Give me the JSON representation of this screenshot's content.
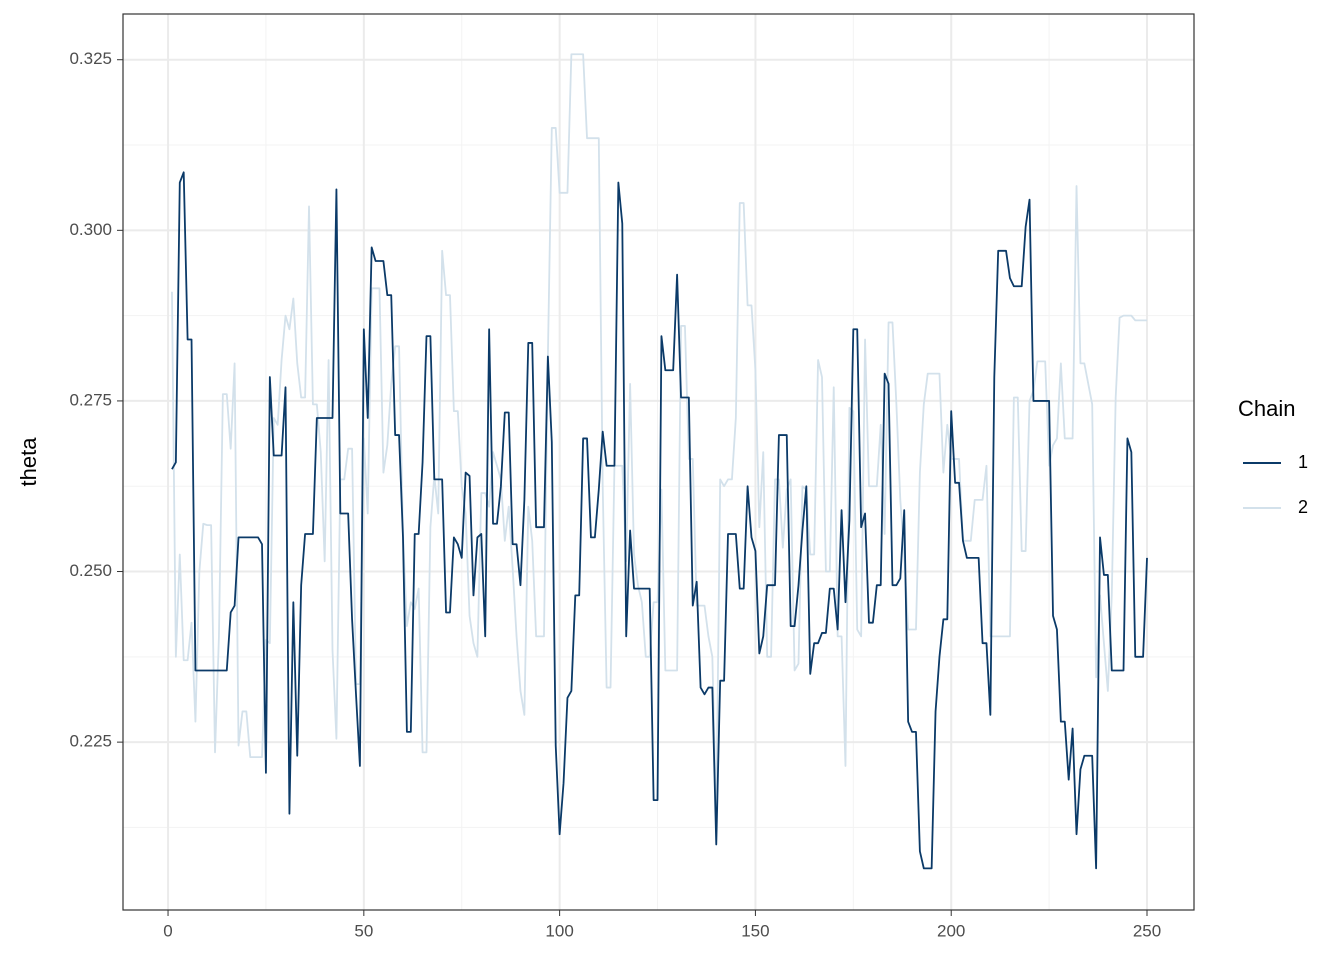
{
  "chart_data": {
    "type": "line",
    "y_label": "theta",
    "legend_title": "Chain",
    "legend": "right",
    "grid": true,
    "xlim": [
      -11.5,
      262
    ],
    "ylim": [
      0.2004,
      0.3317
    ],
    "xticks": [
      0,
      50,
      100,
      150,
      200,
      250
    ],
    "xticks_minor": [
      25,
      75,
      125,
      175,
      225
    ],
    "yticks": [
      0.225,
      {
        "value": 0.25,
        "label": "0.250"
      },
      0.275,
      {
        "value": 0.3,
        "label": "0.300"
      },
      0.325
    ],
    "yticks_minor": [
      0.2125,
      0.2375,
      0.2625,
      0.2875,
      0.3125
    ],
    "x": [
      1,
      2,
      3,
      4,
      5,
      6,
      7,
      8,
      9,
      10,
      11,
      12,
      13,
      14,
      15,
      16,
      17,
      18,
      19,
      20,
      21,
      22,
      23,
      24,
      25,
      26,
      27,
      28,
      29,
      30,
      31,
      32,
      33,
      34,
      35,
      36,
      37,
      38,
      39,
      40,
      41,
      42,
      43,
      44,
      45,
      46,
      47,
      48,
      49,
      50,
      51,
      52,
      53,
      54,
      55,
      56,
      57,
      58,
      59,
      60,
      61,
      62,
      63,
      64,
      65,
      66,
      67,
      68,
      69,
      70,
      71,
      72,
      73,
      74,
      75,
      76,
      77,
      78,
      79,
      80,
      81,
      82,
      83,
      84,
      85,
      86,
      87,
      88,
      89,
      90,
      91,
      92,
      93,
      94,
      95,
      96,
      97,
      98,
      99,
      100,
      101,
      102,
      103,
      104,
      105,
      106,
      107,
      108,
      109,
      110,
      111,
      112,
      113,
      114,
      115,
      116,
      117,
      118,
      119,
      120,
      121,
      122,
      123,
      124,
      125,
      126,
      127,
      128,
      129,
      130,
      131,
      132,
      133,
      134,
      135,
      136,
      137,
      138,
      139,
      140,
      141,
      142,
      143,
      144,
      145,
      146,
      147,
      148,
      149,
      150,
      151,
      152,
      153,
      154,
      155,
      156,
      157,
      158,
      159,
      160,
      161,
      162,
      163,
      164,
      165,
      166,
      167,
      168,
      169,
      170,
      171,
      172,
      173,
      174,
      175,
      176,
      177,
      178,
      179,
      180,
      181,
      182,
      183,
      184,
      185,
      186,
      187,
      188,
      189,
      190,
      191,
      192,
      193,
      194,
      195,
      196,
      197,
      198,
      199,
      200,
      201,
      202,
      203,
      204,
      205,
      206,
      207,
      208,
      209,
      210,
      211,
      212,
      213,
      214,
      215,
      216,
      217,
      218,
      219,
      220,
      221,
      222,
      223,
      224,
      225,
      226,
      227,
      228,
      229,
      230,
      231,
      232,
      233,
      234,
      235,
      236,
      237,
      238,
      239,
      240,
      241,
      242,
      243,
      244,
      245,
      246,
      247,
      248,
      249,
      250
    ],
    "series": [
      {
        "name": "2",
        "color": "#d3e1eb",
        "values": [
          0.291,
          0.2375,
          0.2525,
          0.237,
          0.237,
          0.2425,
          0.228,
          0.25,
          0.257,
          0.2568,
          0.2568,
          0.2235,
          0.2405,
          0.276,
          0.276,
          0.268,
          0.2805,
          0.2245,
          0.2295,
          0.2295,
          0.2228,
          0.2228,
          0.2228,
          0.2228,
          0.24,
          0.2395,
          0.2725,
          0.2715,
          0.281,
          0.2875,
          0.2855,
          0.29,
          0.2805,
          0.2755,
          0.2755,
          0.3035,
          0.2745,
          0.2745,
          0.2675,
          0.2515,
          0.281,
          0.2385,
          0.2255,
          0.2635,
          0.2635,
          0.268,
          0.268,
          0.2335,
          0.2335,
          0.2695,
          0.2585,
          0.2915,
          0.2915,
          0.2915,
          0.2645,
          0.2685,
          0.2775,
          0.283,
          0.283,
          0.2555,
          0.242,
          0.2455,
          0.2445,
          0.2475,
          0.2235,
          0.2235,
          0.2565,
          0.264,
          0.2585,
          0.297,
          0.2905,
          0.2905,
          0.2735,
          0.2735,
          0.2625,
          0.2585,
          0.2435,
          0.2395,
          0.2375,
          0.2615,
          0.2615,
          0.2595,
          0.2675,
          0.2655,
          0.2635,
          0.2545,
          0.2595,
          0.2505,
          0.2405,
          0.2325,
          0.229,
          0.2595,
          0.2545,
          0.2405,
          0.2405,
          0.2405,
          0.2815,
          0.315,
          0.315,
          0.3055,
          0.3055,
          0.3055,
          0.3258,
          0.3258,
          0.3258,
          0.3258,
          0.3135,
          0.3135,
          0.3135,
          0.3135,
          0.2625,
          0.233,
          0.233,
          0.2655,
          0.2655,
          0.2655,
          0.2515,
          0.2775,
          0.2525,
          0.248,
          0.2455,
          0.2375,
          0.2375,
          0.2455,
          0.2455,
          0.262,
          0.2355,
          0.2355,
          0.2355,
          0.2355,
          0.286,
          0.286,
          0.2665,
          0.2665,
          0.245,
          0.245,
          0.245,
          0.2405,
          0.2375,
          0.2135,
          0.2635,
          0.2625,
          0.2635,
          0.2635,
          0.2725,
          0.304,
          0.304,
          0.289,
          0.289,
          0.2795,
          0.2565,
          0.2675,
          0.2375,
          0.2375,
          0.2635,
          0.2635,
          0.2535,
          0.262,
          0.2635,
          0.2355,
          0.2365,
          0.2625,
          0.262,
          0.2525,
          0.2525,
          0.281,
          0.2785,
          0.25,
          0.25,
          0.277,
          0.2405,
          0.2405,
          0.2215,
          0.274,
          0.2735,
          0.2415,
          0.2405,
          0.284,
          0.2625,
          0.2625,
          0.2625,
          0.2715,
          0.2555,
          0.2865,
          0.2865,
          0.2745,
          0.2605,
          0.2525,
          0.2415,
          0.2415,
          0.2415,
          0.2645,
          0.2745,
          0.279,
          0.279,
          0.279,
          0.279,
          0.2645,
          0.2715,
          0.2665,
          0.2665,
          0.2665,
          0.2545,
          0.2545,
          0.2545,
          0.2605,
          0.2605,
          0.2605,
          0.2655,
          0.2405,
          0.2405,
          0.2405,
          0.2405,
          0.2405,
          0.2405,
          0.2755,
          0.2755,
          0.253,
          0.253,
          0.275,
          0.2765,
          0.2808,
          0.2808,
          0.2808,
          0.2655,
          0.2685,
          0.2695,
          0.2805,
          0.2695,
          0.2695,
          0.2695,
          0.3065,
          0.2805,
          0.2805,
          0.2775,
          0.2745,
          0.2345,
          0.2465,
          0.2395,
          0.2325,
          0.2465,
          0.2755,
          0.2872,
          0.2875,
          0.2875,
          0.2875,
          0.2868,
          0.2868,
          0.2868,
          0.2868
        ]
      },
      {
        "name": "1",
        "color": "#0b3a68",
        "values": [
          0.265,
          0.266,
          0.307,
          0.3085,
          0.284,
          0.284,
          0.2355,
          0.2355,
          0.2355,
          0.2355,
          0.2355,
          0.2355,
          0.2355,
          0.2355,
          0.2355,
          0.244,
          0.245,
          0.255,
          0.255,
          0.255,
          0.255,
          0.255,
          0.255,
          0.254,
          0.2205,
          0.2785,
          0.267,
          0.267,
          0.267,
          0.277,
          0.2145,
          0.2455,
          0.223,
          0.248,
          0.2555,
          0.2555,
          0.2555,
          0.2725,
          0.2725,
          0.2725,
          0.2725,
          0.2725,
          0.306,
          0.2585,
          0.2585,
          0.2585,
          0.243,
          0.232,
          0.2215,
          0.2855,
          0.2725,
          0.2975,
          0.2955,
          0.2955,
          0.2955,
          0.2905,
          0.2905,
          0.27,
          0.27,
          0.255,
          0.2265,
          0.2265,
          0.2555,
          0.2555,
          0.266,
          0.2845,
          0.2845,
          0.2635,
          0.2635,
          0.2635,
          0.244,
          0.244,
          0.255,
          0.254,
          0.252,
          0.2645,
          0.264,
          0.2465,
          0.255,
          0.2555,
          0.2405,
          0.2855,
          0.257,
          0.257,
          0.2625,
          0.2733,
          0.2733,
          0.254,
          0.254,
          0.248,
          0.2605,
          0.2835,
          0.2835,
          0.2565,
          0.2565,
          0.2565,
          0.2815,
          0.269,
          0.2245,
          0.2115,
          0.219,
          0.2315,
          0.2325,
          0.2465,
          0.2465,
          0.2695,
          0.2695,
          0.255,
          0.255,
          0.262,
          0.2705,
          0.2655,
          0.2655,
          0.2655,
          0.307,
          0.301,
          0.2405,
          0.256,
          0.2475,
          0.2475,
          0.2475,
          0.2475,
          0.2475,
          0.2165,
          0.2165,
          0.2845,
          0.2795,
          0.2795,
          0.2795,
          0.2935,
          0.2755,
          0.2755,
          0.2755,
          0.245,
          0.2485,
          0.233,
          0.232,
          0.233,
          0.233,
          0.21,
          0.234,
          0.234,
          0.2555,
          0.2555,
          0.2555,
          0.2475,
          0.2475,
          0.2625,
          0.255,
          0.253,
          0.238,
          0.2405,
          0.248,
          0.248,
          0.248,
          0.27,
          0.27,
          0.27,
          0.242,
          0.242,
          0.248,
          0.256,
          0.2625,
          0.235,
          0.2395,
          0.2395,
          0.241,
          0.241,
          0.2475,
          0.2475,
          0.2415,
          0.259,
          0.2455,
          0.2575,
          0.2855,
          0.2855,
          0.2565,
          0.2585,
          0.2425,
          0.2425,
          0.248,
          0.248,
          0.279,
          0.2775,
          0.248,
          0.248,
          0.249,
          0.259,
          0.228,
          0.2265,
          0.2265,
          0.209,
          0.2065,
          0.2065,
          0.2065,
          0.2295,
          0.2375,
          0.243,
          0.243,
          0.2735,
          0.263,
          0.263,
          0.2545,
          0.252,
          0.252,
          0.252,
          0.252,
          0.2395,
          0.2395,
          0.229,
          0.2785,
          0.297,
          0.297,
          0.297,
          0.293,
          0.2918,
          0.2918,
          0.2918,
          0.3005,
          0.3045,
          0.275,
          0.275,
          0.275,
          0.275,
          0.275,
          0.2435,
          0.2415,
          0.228,
          0.228,
          0.2195,
          0.227,
          0.2115,
          0.221,
          0.223,
          0.223,
          0.223,
          0.2065,
          0.255,
          0.2495,
          0.2495,
          0.2355,
          0.2355,
          0.2355,
          0.2355,
          0.2695,
          0.2675,
          0.2375,
          0.2375,
          0.2375,
          0.252
        ]
      }
    ]
  }
}
